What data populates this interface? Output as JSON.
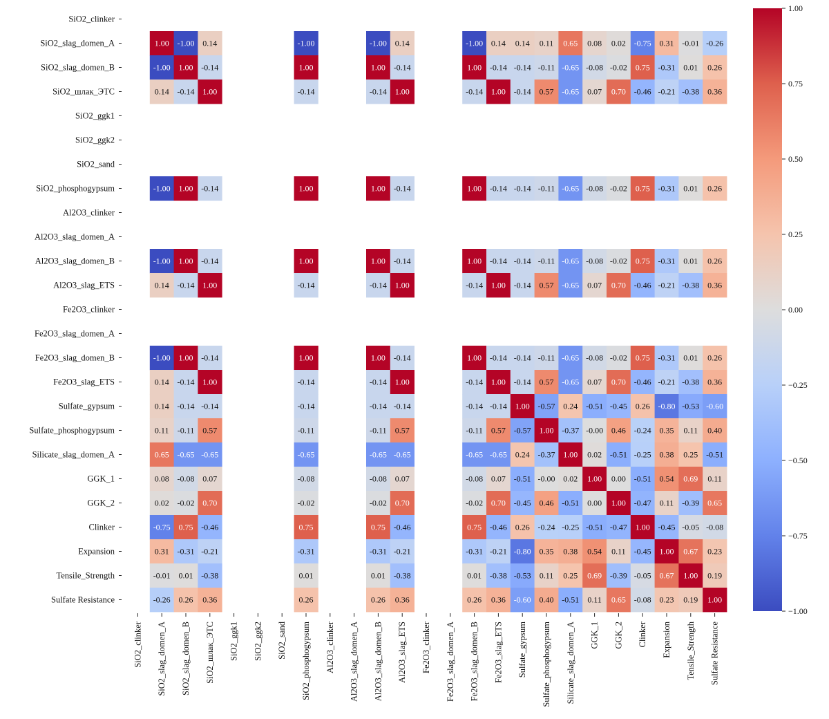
{
  "chart_data": {
    "type": "heatmap",
    "title": "",
    "xlabel": "",
    "ylabel": "",
    "value_range": [
      -1.0,
      1.0
    ],
    "colormap": "coolwarm",
    "colors": {
      "low": "#3b4cc0",
      "mid": "#dddddd",
      "high": "#b40426",
      "text_dark": "#111111",
      "text_light": "#ffffff"
    },
    "colorbar": {
      "ticks": [
        1.0,
        0.75,
        0.5,
        0.25,
        0.0,
        -0.25,
        -0.5,
        -0.75,
        -1.0
      ],
      "tick_labels": [
        "1.00",
        "0.75",
        "0.50",
        "0.25",
        "0.00",
        "−0.25",
        "−0.50",
        "−0.75",
        "−1.00"
      ]
    },
    "row_labels": [
      "SiO2_clinker",
      "SiO2_slag_domen_A",
      "SiO2_slag_domen_B",
      "SiO2_шлак_ЭТС",
      "SiO2_ggk1",
      "SiO2_ggk2",
      "SiO2_sand",
      "SiO2_phosphogypsum",
      "Al2O3_clinker",
      "Al2O3_slag_domen_A",
      "Al2O3_slag_domen_B",
      "Al2O3_slag_ETS",
      "Fe2O3_clinker",
      "Fe2O3_slag_domen_A",
      "Fe2O3_slag_domen_B",
      "Fe2O3_slag_ETS",
      "Sulfate_gypsum",
      "Sulfate_phosphogypsum",
      "Silicate_slag_domen_A",
      "GGK_1",
      "GGK_2",
      "Clinker",
      "Expansion",
      "Tensile_Strength",
      "Sulfate Resistance"
    ],
    "col_labels": [
      "SiO2_clinker",
      "SiO2_slag_domen_A",
      "SiO2_slag_domen_B",
      "SiO2_шлак_ЭТС",
      "SiO2_ggk1",
      "SiO2_ggk2",
      "SiO2_sand",
      "SiO2_phosphogypsum",
      "Al2O3_clinker",
      "Al2O3_slag_domen_A",
      "Al2O3_slag_domen_B",
      "Al2O3_slag_ETS",
      "Fe2O3_clinker",
      "Fe2O3_slag_domen_A",
      "Fe2O3_slag_domen_B",
      "Fe2O3_slag_ETS",
      "Sulfate_gypsum",
      "Sulfate_phosphogypsum",
      "Silicate_slag_domen_A",
      "GGK_1",
      "GGK_2",
      "Clinker",
      "Expansion",
      "Tensile_Strength",
      "Sulfate Resistance"
    ],
    "matrix": [
      [
        null,
        null,
        null,
        null,
        null,
        null,
        null,
        null,
        null,
        null,
        null,
        null,
        null,
        null,
        null,
        null,
        null,
        null,
        null,
        null,
        null,
        null,
        null,
        null,
        null
      ],
      [
        null,
        1.0,
        -1.0,
        0.14,
        null,
        null,
        null,
        -1.0,
        null,
        null,
        -1.0,
        0.14,
        null,
        null,
        -1.0,
        0.14,
        0.14,
        0.11,
        0.65,
        0.08,
        0.02,
        -0.75,
        0.31,
        -0.01,
        -0.26
      ],
      [
        null,
        -1.0,
        1.0,
        -0.14,
        null,
        null,
        null,
        1.0,
        null,
        null,
        1.0,
        -0.14,
        null,
        null,
        1.0,
        -0.14,
        -0.14,
        -0.11,
        -0.65,
        -0.08,
        -0.02,
        0.75,
        -0.31,
        0.01,
        0.26
      ],
      [
        null,
        0.14,
        -0.14,
        1.0,
        null,
        null,
        null,
        -0.14,
        null,
        null,
        -0.14,
        1.0,
        null,
        null,
        -0.14,
        1.0,
        -0.14,
        0.57,
        -0.65,
        0.07,
        0.7,
        -0.46,
        -0.21,
        -0.38,
        0.36
      ],
      [
        null,
        null,
        null,
        null,
        null,
        null,
        null,
        null,
        null,
        null,
        null,
        null,
        null,
        null,
        null,
        null,
        null,
        null,
        null,
        null,
        null,
        null,
        null,
        null,
        null
      ],
      [
        null,
        null,
        null,
        null,
        null,
        null,
        null,
        null,
        null,
        null,
        null,
        null,
        null,
        null,
        null,
        null,
        null,
        null,
        null,
        null,
        null,
        null,
        null,
        null,
        null
      ],
      [
        null,
        null,
        null,
        null,
        null,
        null,
        null,
        null,
        null,
        null,
        null,
        null,
        null,
        null,
        null,
        null,
        null,
        null,
        null,
        null,
        null,
        null,
        null,
        null,
        null
      ],
      [
        null,
        -1.0,
        1.0,
        -0.14,
        null,
        null,
        null,
        1.0,
        null,
        null,
        1.0,
        -0.14,
        null,
        null,
        1.0,
        -0.14,
        -0.14,
        -0.11,
        -0.65,
        -0.08,
        -0.02,
        0.75,
        -0.31,
        0.01,
        0.26
      ],
      [
        null,
        null,
        null,
        null,
        null,
        null,
        null,
        null,
        null,
        null,
        null,
        null,
        null,
        null,
        null,
        null,
        null,
        null,
        null,
        null,
        null,
        null,
        null,
        null,
        null
      ],
      [
        null,
        null,
        null,
        null,
        null,
        null,
        null,
        null,
        null,
        null,
        null,
        null,
        null,
        null,
        null,
        null,
        null,
        null,
        null,
        null,
        null,
        null,
        null,
        null,
        null
      ],
      [
        null,
        -1.0,
        1.0,
        -0.14,
        null,
        null,
        null,
        1.0,
        null,
        null,
        1.0,
        -0.14,
        null,
        null,
        1.0,
        -0.14,
        -0.14,
        -0.11,
        -0.65,
        -0.08,
        -0.02,
        0.75,
        -0.31,
        0.01,
        0.26
      ],
      [
        null,
        0.14,
        -0.14,
        1.0,
        null,
        null,
        null,
        -0.14,
        null,
        null,
        -0.14,
        1.0,
        null,
        null,
        -0.14,
        1.0,
        -0.14,
        0.57,
        -0.65,
        0.07,
        0.7,
        -0.46,
        -0.21,
        -0.38,
        0.36
      ],
      [
        null,
        null,
        null,
        null,
        null,
        null,
        null,
        null,
        null,
        null,
        null,
        null,
        null,
        null,
        null,
        null,
        null,
        null,
        null,
        null,
        null,
        null,
        null,
        null,
        null
      ],
      [
        null,
        null,
        null,
        null,
        null,
        null,
        null,
        null,
        null,
        null,
        null,
        null,
        null,
        null,
        null,
        null,
        null,
        null,
        null,
        null,
        null,
        null,
        null,
        null,
        null
      ],
      [
        null,
        -1.0,
        1.0,
        -0.14,
        null,
        null,
        null,
        1.0,
        null,
        null,
        1.0,
        -0.14,
        null,
        null,
        1.0,
        -0.14,
        -0.14,
        -0.11,
        -0.65,
        -0.08,
        -0.02,
        0.75,
        -0.31,
        0.01,
        0.26
      ],
      [
        null,
        0.14,
        -0.14,
        1.0,
        null,
        null,
        null,
        -0.14,
        null,
        null,
        -0.14,
        1.0,
        null,
        null,
        -0.14,
        1.0,
        -0.14,
        0.57,
        -0.65,
        0.07,
        0.7,
        -0.46,
        -0.21,
        -0.38,
        0.36
      ],
      [
        null,
        0.14,
        -0.14,
        -0.14,
        null,
        null,
        null,
        -0.14,
        null,
        null,
        -0.14,
        -0.14,
        null,
        null,
        -0.14,
        -0.14,
        1.0,
        -0.57,
        0.24,
        -0.51,
        -0.45,
        0.26,
        -0.8,
        -0.53,
        -0.6
      ],
      [
        null,
        0.11,
        -0.11,
        0.57,
        null,
        null,
        null,
        -0.11,
        null,
        null,
        -0.11,
        0.57,
        null,
        null,
        -0.11,
        0.57,
        -0.57,
        1.0,
        -0.37,
        -0.0,
        0.46,
        -0.24,
        0.35,
        0.11,
        0.4
      ],
      [
        null,
        0.65,
        -0.65,
        -0.65,
        null,
        null,
        null,
        -0.65,
        null,
        null,
        -0.65,
        -0.65,
        null,
        null,
        -0.65,
        -0.65,
        0.24,
        -0.37,
        1.0,
        0.02,
        -0.51,
        -0.25,
        0.38,
        0.25,
        -0.51
      ],
      [
        null,
        0.08,
        -0.08,
        0.07,
        null,
        null,
        null,
        -0.08,
        null,
        null,
        -0.08,
        0.07,
        null,
        null,
        -0.08,
        0.07,
        -0.51,
        -0.0,
        0.02,
        1.0,
        0.0,
        -0.51,
        0.54,
        0.69,
        0.11
      ],
      [
        null,
        0.02,
        -0.02,
        0.7,
        null,
        null,
        null,
        -0.02,
        null,
        null,
        -0.02,
        0.7,
        null,
        null,
        -0.02,
        0.7,
        -0.45,
        0.46,
        -0.51,
        0.0,
        1.0,
        -0.47,
        0.11,
        -0.39,
        0.65
      ],
      [
        null,
        -0.75,
        0.75,
        -0.46,
        null,
        null,
        null,
        0.75,
        null,
        null,
        0.75,
        -0.46,
        null,
        null,
        0.75,
        -0.46,
        0.26,
        -0.24,
        -0.25,
        -0.51,
        -0.47,
        1.0,
        -0.45,
        -0.05,
        -0.08
      ],
      [
        null,
        0.31,
        -0.31,
        -0.21,
        null,
        null,
        null,
        -0.31,
        null,
        null,
        -0.31,
        -0.21,
        null,
        null,
        -0.31,
        -0.21,
        -0.8,
        0.35,
        0.38,
        0.54,
        0.11,
        -0.45,
        1.0,
        0.67,
        0.23
      ],
      [
        null,
        -0.01,
        0.01,
        -0.38,
        null,
        null,
        null,
        0.01,
        null,
        null,
        0.01,
        -0.38,
        null,
        null,
        0.01,
        -0.38,
        -0.53,
        0.11,
        0.25,
        0.69,
        -0.39,
        -0.05,
        0.67,
        1.0,
        0.19
      ],
      [
        null,
        -0.26,
        0.26,
        0.36,
        null,
        null,
        null,
        0.26,
        null,
        null,
        0.26,
        0.36,
        null,
        null,
        0.26,
        0.36,
        -0.6,
        0.4,
        -0.51,
        0.11,
        0.65,
        -0.08,
        0.23,
        0.19,
        1.0
      ]
    ]
  }
}
